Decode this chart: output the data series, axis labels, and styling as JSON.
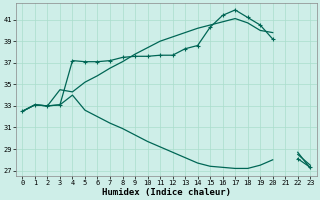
{
  "xlabel": "Humidex (Indice chaleur)",
  "background_color": "#ceeee8",
  "line_color": "#006655",
  "grid_color": "#aaddcc",
  "xlim": [
    -0.5,
    23.5
  ],
  "ylim": [
    26.5,
    42.5
  ],
  "yticks": [
    27,
    29,
    31,
    33,
    35,
    37,
    39,
    41
  ],
  "xticks": [
    0,
    1,
    2,
    3,
    4,
    5,
    6,
    7,
    8,
    9,
    10,
    11,
    12,
    13,
    14,
    15,
    16,
    17,
    18,
    19,
    20,
    21,
    22,
    23
  ],
  "lines": [
    {
      "x": [
        0,
        1,
        2,
        3,
        4,
        5,
        6,
        7,
        8,
        9,
        10,
        11,
        12,
        13,
        14,
        15,
        16,
        17,
        18,
        19,
        20,
        21,
        22,
        23
      ],
      "y": [
        32.5,
        33.1,
        33.0,
        33.1,
        37.2,
        37.1,
        37.1,
        37.2,
        37.5,
        37.6,
        37.6,
        37.7,
        37.7,
        38.3,
        38.6,
        40.3,
        41.4,
        41.9,
        41.2,
        40.5,
        39.2,
        null,
        28.1,
        27.3
      ],
      "marker": true
    },
    {
      "x": [
        0,
        1,
        2,
        3,
        4,
        5,
        6,
        7,
        8,
        9,
        10,
        11,
        12,
        13,
        14,
        15,
        16,
        17,
        18,
        19,
        20,
        21,
        22,
        23
      ],
      "y": [
        32.5,
        33.1,
        33.0,
        34.5,
        34.3,
        35.2,
        35.8,
        36.5,
        37.1,
        37.8,
        38.4,
        39.0,
        39.4,
        39.8,
        40.2,
        40.5,
        40.8,
        41.1,
        40.7,
        40.0,
        39.8,
        null,
        28.5,
        27.5
      ],
      "marker": false
    },
    {
      "x": [
        0,
        1,
        2,
        3,
        4,
        5,
        6,
        7,
        8,
        9,
        10,
        11,
        12,
        13,
        14,
        15,
        16,
        17,
        18,
        19,
        20,
        21,
        22,
        23
      ],
      "y": [
        32.5,
        33.1,
        33.0,
        33.1,
        34.0,
        32.6,
        32.0,
        31.4,
        30.9,
        30.3,
        29.7,
        29.2,
        28.7,
        28.2,
        27.7,
        27.4,
        27.3,
        27.2,
        27.2,
        27.5,
        28.0,
        null,
        28.7,
        27.2
      ],
      "marker": false
    }
  ]
}
